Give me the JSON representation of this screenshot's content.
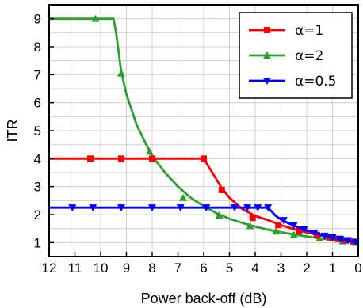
{
  "chart_data": {
    "type": "line",
    "title": "",
    "xlabel": "Power back-off (dB)",
    "ylabel": "ITR",
    "xlim": [
      12,
      0
    ],
    "ylim": [
      0.5,
      9.5
    ],
    "x_reversed": true,
    "xticks": [
      "12",
      "11",
      "10",
      "9",
      "8",
      "7",
      "6",
      "5",
      "4",
      "3",
      "2",
      "1",
      "0"
    ],
    "yticks": [
      "1",
      "2",
      "3",
      "4",
      "5",
      "6",
      "7",
      "8",
      "9"
    ],
    "grid": true,
    "legend_position": "top-right",
    "series": [
      {
        "name": "α=1",
        "color": "#ff0000",
        "marker": "square",
        "line": [
          [
            12,
            4
          ],
          [
            11,
            4
          ],
          [
            10,
            4
          ],
          [
            9,
            4
          ],
          [
            8,
            4
          ],
          [
            7,
            4
          ],
          [
            6,
            4
          ],
          [
            5.6,
            3.4
          ],
          [
            5.3,
            2.95
          ],
          [
            5,
            2.6
          ],
          [
            4.5,
            2.2
          ],
          [
            4,
            1.95
          ],
          [
            3.5,
            1.8
          ],
          [
            3,
            1.62
          ],
          [
            2.5,
            1.48
          ],
          [
            2,
            1.36
          ],
          [
            1.5,
            1.26
          ],
          [
            1,
            1.17
          ],
          [
            0.5,
            1.08
          ],
          [
            0,
            1.0
          ]
        ],
        "markers": [
          [
            10.4,
            4
          ],
          [
            9.2,
            4
          ],
          [
            8,
            4
          ],
          [
            6,
            4
          ],
          [
            5.3,
            2.88
          ],
          [
            4.1,
            1.88
          ],
          [
            3.1,
            1.63
          ],
          [
            2.3,
            1.42
          ],
          [
            1.6,
            1.27
          ],
          [
            1.1,
            1.18
          ],
          [
            0.8,
            1.13
          ],
          [
            0.5,
            1.08
          ],
          [
            0.2,
            1.03
          ]
        ]
      },
      {
        "name": "α=2",
        "color": "#2ca02c",
        "marker": "triangle-up",
        "line": [
          [
            12,
            9
          ],
          [
            10,
            9
          ],
          [
            9.5,
            9
          ],
          [
            9.4,
            8.5
          ],
          [
            9.2,
            7.1
          ],
          [
            9,
            6.3
          ],
          [
            8.6,
            5.2
          ],
          [
            8.2,
            4.45
          ],
          [
            8,
            4.1
          ],
          [
            7.5,
            3.5
          ],
          [
            7,
            3.0
          ],
          [
            6.5,
            2.6
          ],
          [
            6,
            2.3
          ],
          [
            5.5,
            2.05
          ],
          [
            5,
            1.85
          ],
          [
            4.5,
            1.7
          ],
          [
            4,
            1.57
          ],
          [
            3.5,
            1.46
          ],
          [
            3,
            1.37
          ],
          [
            2.5,
            1.29
          ],
          [
            2,
            1.22
          ],
          [
            1.5,
            1.15
          ],
          [
            1,
            1.1
          ],
          [
            0.5,
            1.04
          ],
          [
            0,
            1.0
          ]
        ],
        "markers": [
          [
            10.2,
            9
          ],
          [
            9.2,
            7.05
          ],
          [
            8.1,
            4.25
          ],
          [
            6.8,
            2.6
          ],
          [
            5.4,
            1.97
          ],
          [
            4.2,
            1.59
          ],
          [
            3.2,
            1.4
          ],
          [
            2.5,
            1.28
          ],
          [
            1.5,
            1.15
          ],
          [
            0.6,
            1.05
          ],
          [
            0.1,
            1.0
          ]
        ]
      },
      {
        "name": "α=0.5",
        "color": "#0000ff",
        "marker": "triangle-down",
        "line": [
          [
            12,
            2.25
          ],
          [
            11,
            2.25
          ],
          [
            10,
            2.25
          ],
          [
            9,
            2.25
          ],
          [
            8,
            2.25
          ],
          [
            7,
            2.25
          ],
          [
            6,
            2.25
          ],
          [
            5,
            2.25
          ],
          [
            4,
            2.25
          ],
          [
            3.5,
            2.25
          ],
          [
            3.2,
            1.95
          ],
          [
            3,
            1.82
          ],
          [
            2.5,
            1.6
          ],
          [
            2,
            1.44
          ],
          [
            1.5,
            1.3
          ],
          [
            1,
            1.18
          ],
          [
            0.5,
            1.08
          ],
          [
            0,
            1.0
          ]
        ],
        "markers": [
          [
            11.1,
            2.25
          ],
          [
            10.3,
            2.25
          ],
          [
            9.2,
            2.25
          ],
          [
            8,
            2.25
          ],
          [
            6.9,
            2.25
          ],
          [
            5.9,
            2.25
          ],
          [
            4.8,
            2.25
          ],
          [
            4.3,
            2.25
          ],
          [
            3.9,
            2.25
          ],
          [
            3.5,
            2.25
          ],
          [
            2.9,
            1.8
          ],
          [
            2.5,
            1.62
          ],
          [
            2.1,
            1.47
          ],
          [
            1.7,
            1.35
          ],
          [
            1.3,
            1.24
          ],
          [
            1,
            1.18
          ],
          [
            0.7,
            1.13
          ],
          [
            0.4,
            1.08
          ],
          [
            0.1,
            1.02
          ]
        ]
      }
    ]
  }
}
